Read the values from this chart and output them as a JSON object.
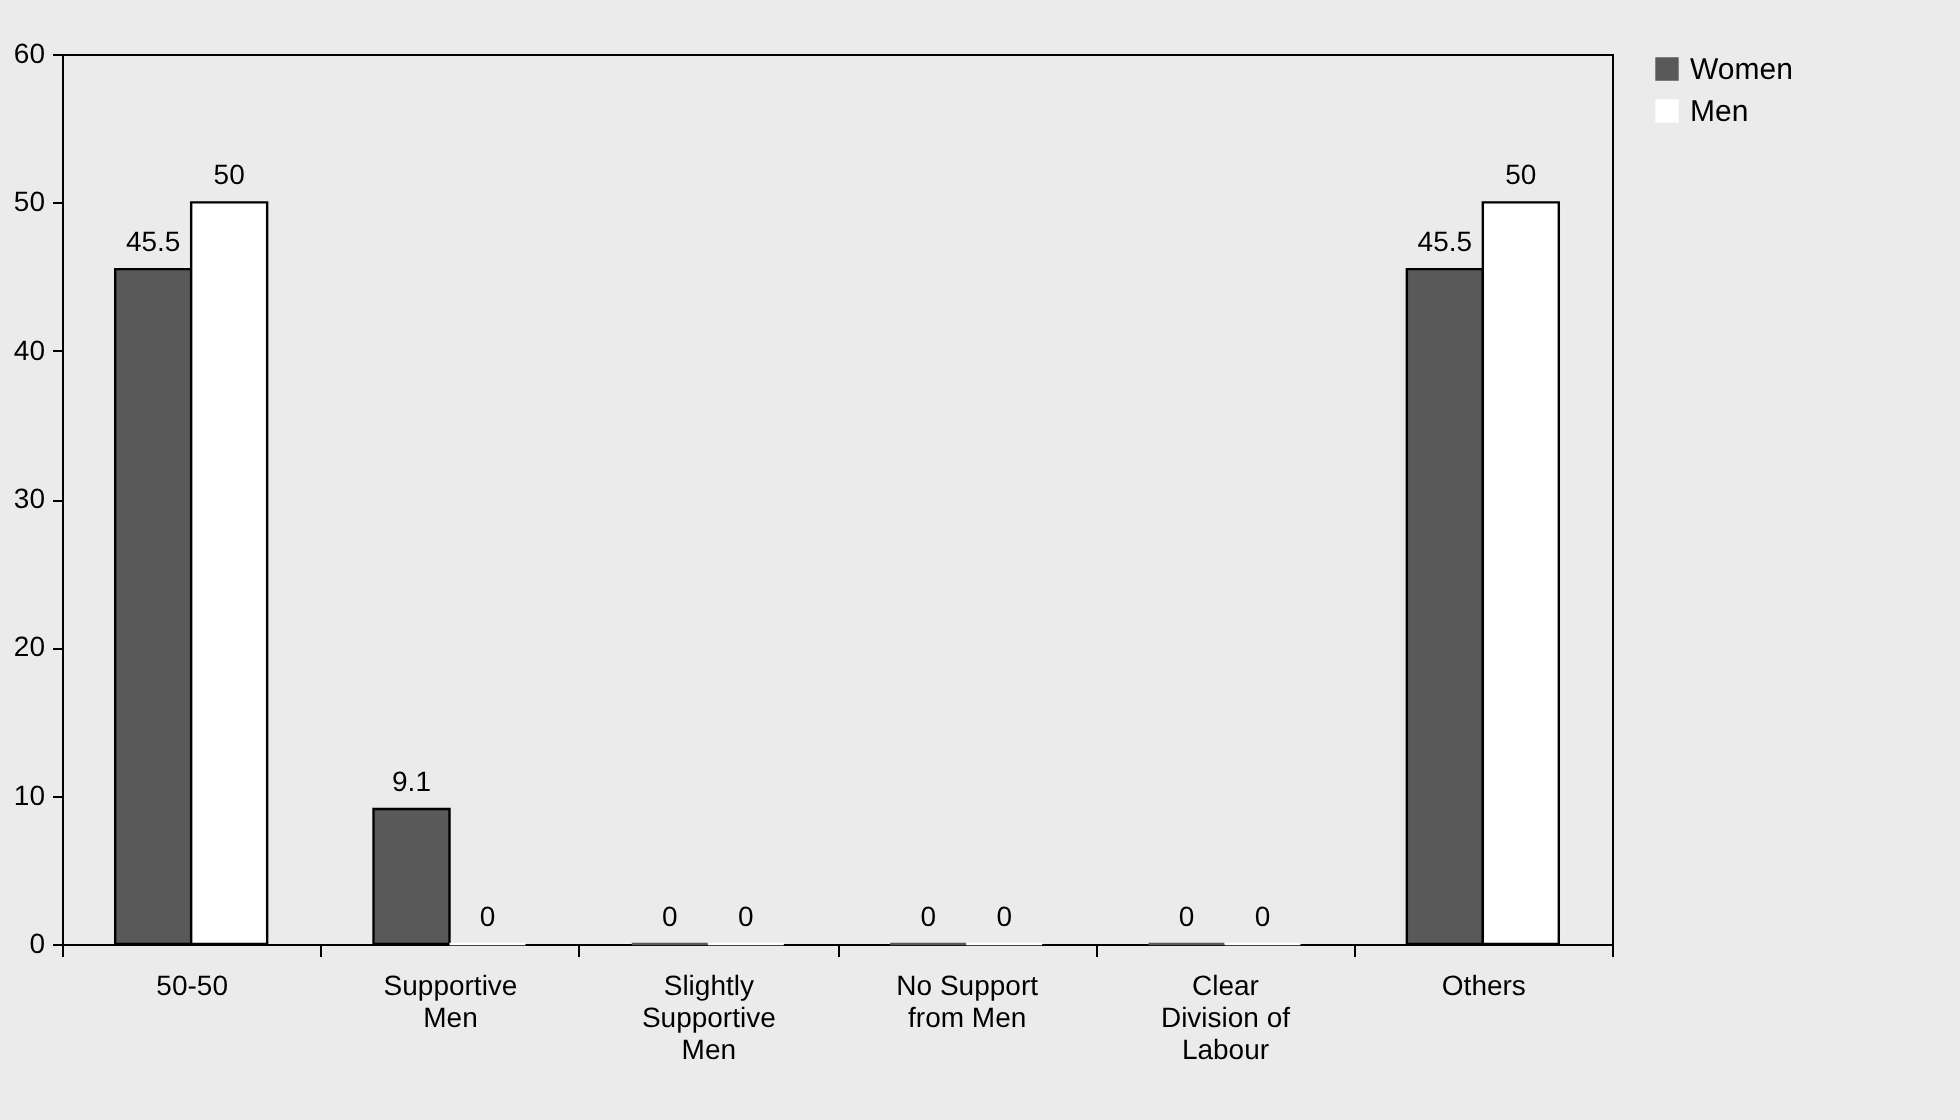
{
  "chart_data": {
    "type": "bar",
    "categories": [
      "50-50",
      "Supportive Men",
      "Slightly Supportive Men",
      "No Support from Men",
      "Clear Division of Labour",
      "Others"
    ],
    "series": [
      {
        "name": "Women",
        "color": "#595959",
        "values": [
          45.5,
          9.1,
          0,
          0,
          0,
          45.5
        ]
      },
      {
        "name": "Men",
        "color": "#ffffff",
        "values": [
          50,
          0,
          0,
          0,
          0,
          50
        ]
      }
    ],
    "ylim": [
      0,
      60
    ],
    "yticks": [
      0,
      10,
      20,
      30,
      40,
      50,
      60
    ],
    "grid": false,
    "legend": "right",
    "data_labels": true
  }
}
